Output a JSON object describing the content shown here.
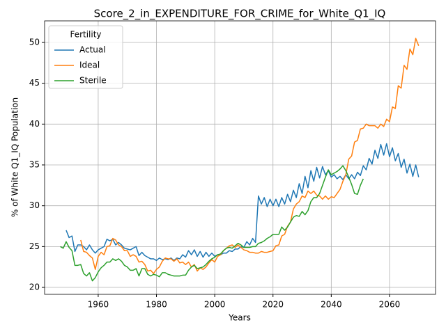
{
  "chart_data": {
    "type": "line",
    "title": "Score_2_in_EXPENDITURE_FOR_CRIME_for_White_Q1_IQ",
    "x_label": "Years",
    "y_label": "% of White Q1_IQ Population",
    "legend_title": "Fertility",
    "legend_position": "upper left",
    "grid": true,
    "xlim": [
      1941.6,
      2075.8
    ],
    "ylim": [
      19.15,
      52.64
    ],
    "xticks": [
      1960,
      1980,
      2000,
      2020,
      2040,
      2060
    ],
    "yticks": [
      20,
      25,
      30,
      35,
      40,
      45,
      50
    ],
    "x": [
      1947,
      1948,
      1949,
      1950,
      1951,
      1952,
      1953,
      1954,
      1955,
      1956,
      1957,
      1958,
      1959,
      1960,
      1961,
      1962,
      1963,
      1964,
      1965,
      1966,
      1967,
      1968,
      1969,
      1970,
      1971,
      1972,
      1973,
      1974,
      1975,
      1976,
      1977,
      1978,
      1979,
      1980,
      1981,
      1982,
      1983,
      1984,
      1985,
      1986,
      1987,
      1988,
      1989,
      1990,
      1991,
      1992,
      1993,
      1994,
      1995,
      1996,
      1997,
      1998,
      1999,
      2000,
      2001,
      2002,
      2003,
      2004,
      2005,
      2006,
      2007,
      2008,
      2009,
      2010,
      2011,
      2012,
      2013,
      2014,
      2015,
      2016,
      2017,
      2018,
      2019,
      2020,
      2021,
      2022,
      2023,
      2024,
      2025,
      2026,
      2027,
      2028,
      2029,
      2030,
      2031,
      2032,
      2033,
      2034,
      2035,
      2036,
      2037,
      2038,
      2039,
      2040,
      2041,
      2042,
      2043,
      2044,
      2045,
      2046,
      2047,
      2048,
      2049,
      2050,
      2051,
      2052,
      2053,
      2054,
      2055,
      2056,
      2057,
      2058,
      2059,
      2060,
      2061,
      2062,
      2063,
      2064,
      2065,
      2066,
      2067,
      2068,
      2069,
      2070
    ],
    "series": [
      {
        "name": "Actual",
        "color": "#1f77b4",
        "values": [
          null,
          null,
          27.0,
          26.1,
          26.3,
          24.4,
          25.2,
          25.2,
          25.0,
          24.6,
          25.2,
          24.6,
          24.2,
          24.6,
          24.8,
          25.0,
          25.9,
          25.7,
          25.9,
          25.2,
          25.5,
          25.2,
          24.8,
          24.7,
          24.6,
          24.8,
          25.0,
          23.9,
          24.3,
          23.9,
          23.7,
          23.5,
          23.5,
          23.3,
          23.6,
          23.4,
          23.5,
          23.4,
          23.6,
          23.3,
          23.6,
          23.5,
          24.0,
          23.7,
          24.5,
          24.0,
          24.6,
          23.8,
          24.4,
          23.7,
          24.3,
          23.8,
          24.2,
          23.8,
          24.0,
          24.0,
          24.2,
          24.2,
          24.5,
          24.4,
          24.7,
          24.7,
          25.0,
          24.9,
          25.6,
          25.2,
          26.0,
          25.5,
          31.2,
          30.2,
          31.0,
          29.9,
          30.8,
          30.0,
          30.8,
          29.9,
          31.0,
          30.2,
          31.4,
          30.5,
          31.9,
          31.0,
          32.7,
          31.5,
          33.6,
          32.2,
          34.3,
          33.0,
          34.7,
          33.4,
          34.8,
          33.8,
          34.3,
          33.5,
          33.8,
          33.3,
          33.6,
          33.2,
          33.8,
          33.3,
          33.8,
          33.3,
          34.1,
          33.7,
          34.9,
          34.4,
          35.8,
          35.1,
          36.8,
          35.8,
          37.5,
          36.2,
          37.6,
          36.0,
          37.1,
          35.5,
          36.4,
          34.7,
          35.7,
          34.0,
          35.1,
          33.6,
          35.0,
          33.5
        ]
      },
      {
        "name": "Ideal",
        "color": "#ff7f0e",
        "values": [
          null,
          null,
          null,
          null,
          null,
          null,
          null,
          25.8,
          24.4,
          24.3,
          23.9,
          23.6,
          22.2,
          23.8,
          24.3,
          24.0,
          25.0,
          25.1,
          26.0,
          25.8,
          25.2,
          25.0,
          24.5,
          24.5,
          23.8,
          24.0,
          23.8,
          23.1,
          23.2,
          22.8,
          22.0,
          22.1,
          21.7,
          22.2,
          22.5,
          23.2,
          23.6,
          23.5,
          23.5,
          23.2,
          23.5,
          23.0,
          23.1,
          22.8,
          23.1,
          22.5,
          22.8,
          22.0,
          22.4,
          22.2,
          22.5,
          23.0,
          23.4,
          23.1,
          23.8,
          24.0,
          24.5,
          24.8,
          25.1,
          25.2,
          24.9,
          25.2,
          24.9,
          24.6,
          24.5,
          24.3,
          24.3,
          24.2,
          24.2,
          24.4,
          24.3,
          24.3,
          24.4,
          24.5,
          25.1,
          25.2,
          26.3,
          26.5,
          27.5,
          28.0,
          29.6,
          30.2,
          30.5,
          31.2,
          31.0,
          31.8,
          31.5,
          31.8,
          31.3,
          31.2,
          30.8,
          31.2,
          30.8,
          31.1,
          31.0,
          31.5,
          32.0,
          33.0,
          33.8,
          35.7,
          36.1,
          37.8,
          38.0,
          39.4,
          39.5,
          40.0,
          39.8,
          39.8,
          39.8,
          39.5,
          40.0,
          39.7,
          40.6,
          40.3,
          42.1,
          41.9,
          44.7,
          44.4,
          47.2,
          46.7,
          49.2,
          48.5,
          50.5,
          49.6
        ]
      },
      {
        "name": "Sterile",
        "color": "#2ca02c",
        "values": [
          25.0,
          24.8,
          25.6,
          24.9,
          24.5,
          22.7,
          22.7,
          22.8,
          21.7,
          21.4,
          21.8,
          20.8,
          21.2,
          21.9,
          22.4,
          22.7,
          23.1,
          23.1,
          23.5,
          23.3,
          23.5,
          23.2,
          22.7,
          22.5,
          22.1,
          22.1,
          22.3,
          21.4,
          22.3,
          22.3,
          21.6,
          21.4,
          21.6,
          21.5,
          21.3,
          21.8,
          21.8,
          21.6,
          21.5,
          21.4,
          21.4,
          21.4,
          21.5,
          21.5,
          22.1,
          22.5,
          22.7,
          22.3,
          22.4,
          22.5,
          22.8,
          23.2,
          23.5,
          23.7,
          24.0,
          24.1,
          24.5,
          24.8,
          24.9,
          24.8,
          25.1,
          25.4,
          25.2,
          24.9,
          24.9,
          24.9,
          25.0,
          25.0,
          25.4,
          25.5,
          25.7,
          26.0,
          26.2,
          26.5,
          26.5,
          26.5,
          27.4,
          27.0,
          27.4,
          28.0,
          28.6,
          28.8,
          28.7,
          29.3,
          28.9,
          29.4,
          30.5,
          31.0,
          31.0,
          31.5,
          32.5,
          33.5,
          34.4,
          33.8,
          34.0,
          34.2,
          34.5,
          34.9,
          34.3,
          33.5,
          32.6,
          31.5,
          31.4,
          32.5,
          33.3,
          null,
          null,
          null,
          null,
          null,
          null,
          null,
          null,
          null,
          null,
          null,
          null,
          null,
          null,
          null,
          null,
          null,
          null,
          null
        ]
      }
    ]
  }
}
